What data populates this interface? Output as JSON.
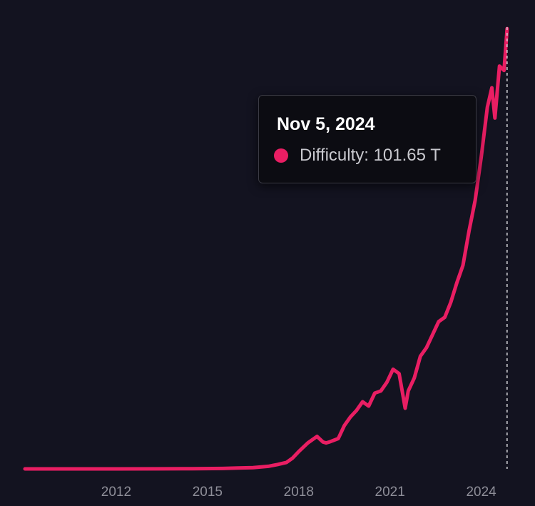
{
  "chart_data": {
    "type": "line",
    "title": "",
    "xlabel": "",
    "ylabel": "",
    "x_tick_labels": [
      "2012",
      "2015",
      "2018",
      "2021",
      "2024"
    ],
    "xlim": [
      2009.0,
      2024.9
    ],
    "ylim": [
      0,
      102
    ],
    "grid": false,
    "legend": "none",
    "line_color": "#e91e63",
    "series": [
      {
        "values_unit": "T",
        "x": [
          2009.0,
          2010.5,
          2012.0,
          2013.5,
          2014.5,
          2015.5,
          2016.0,
          2016.5,
          2017.0,
          2017.3,
          2017.6,
          2017.8,
          2018.0,
          2018.3,
          2018.6,
          2018.8,
          2018.9,
          2019.0,
          2019.3,
          2019.5,
          2019.7,
          2019.9,
          2020.1,
          2020.3,
          2020.5,
          2020.7,
          2020.9,
          2021.1,
          2021.3,
          2021.4,
          2021.5,
          2021.6,
          2021.8,
          2022.0,
          2022.2,
          2022.4,
          2022.6,
          2022.8,
          2023.0,
          2023.2,
          2023.4,
          2023.6,
          2023.8,
          2024.0,
          2024.2,
          2024.35,
          2024.45,
          2024.6,
          2024.75,
          2024.85
        ],
        "values": [
          0,
          0,
          0,
          0.02,
          0.05,
          0.1,
          0.2,
          0.3,
          0.6,
          1.0,
          1.5,
          2.5,
          4.0,
          6.0,
          7.5,
          6.2,
          6.0,
          6.2,
          7.0,
          10.0,
          12.0,
          13.5,
          15.5,
          14.5,
          17.5,
          18.0,
          20.0,
          23.0,
          22.0,
          18.0,
          14.0,
          18.0,
          21.0,
          26.0,
          28.0,
          31.0,
          34.0,
          35.0,
          38.5,
          43.0,
          47.0,
          55.0,
          62.0,
          72.0,
          83.5,
          88.0,
          81.0,
          93.0,
          92.0,
          101.65
        ]
      }
    ],
    "tooltip": {
      "date": "Nov 5, 2024",
      "series_label": "Difficulty: 101.65 T"
    }
  }
}
